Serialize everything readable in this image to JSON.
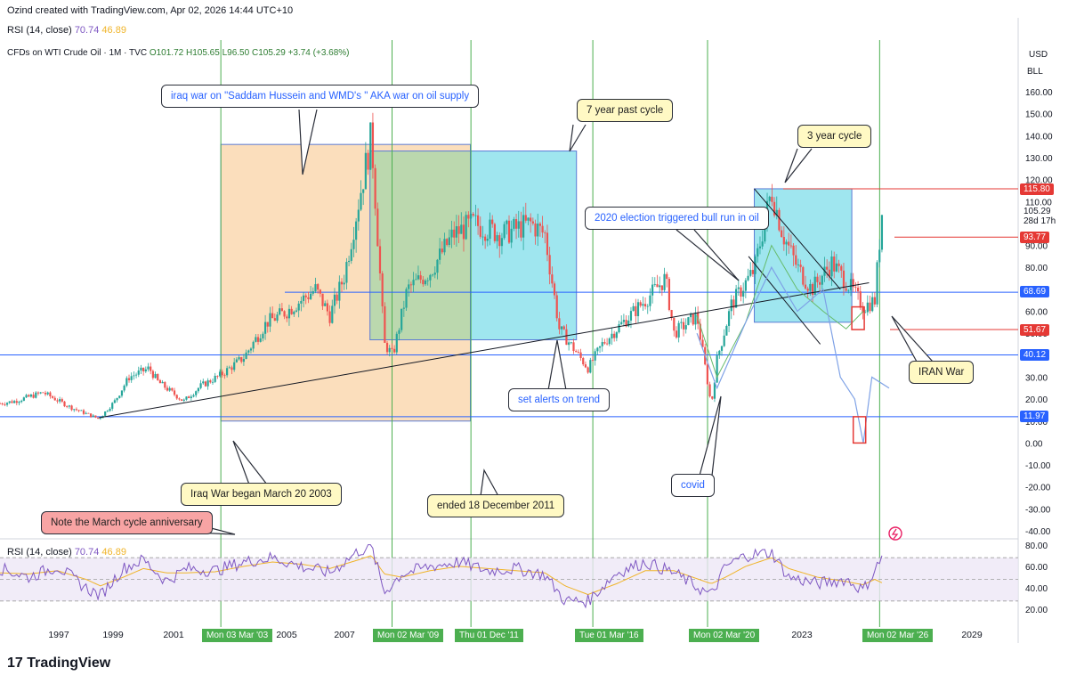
{
  "header": {
    "credit": "Ozind created with TradingView.com, Apr 02, 2026 14:44 UTC+10",
    "rsi_top_label": "RSI (14, close)",
    "rsi_top_v1": "70.74",
    "rsi_top_v2": "46.89",
    "symbol": "CFDs on WTI Crude Oil · 1M · TVC",
    "o": "O101.72",
    "h": "H105.65",
    "l": "L96.50",
    "c": "C105.29",
    "chg": "+3.74 (+3.68%)"
  },
  "axis_header": {
    "currency": "USD",
    "unit": "BLL"
  },
  "colors": {
    "up": "#26a69a",
    "down": "#ef5350",
    "hline": "#5b7bd5",
    "vline": "#4caf50",
    "orange_box": "#f9c890",
    "cyan_box": "#7fdde9",
    "rsi": "#7e57c2",
    "rsi_ma": "#f0b429"
  },
  "callouts": {
    "iraq_war": "iraq war on \"Saddam Hussein and WMD's \" AKA war on oil supply",
    "seven_year": "7 year past cycle",
    "three_year": "3 year cycle",
    "election": "2020 election triggered bull run in oil",
    "alerts": "set alerts on trend",
    "iran": "IRAN War",
    "covid": "covid",
    "iraq_began": "Iraq War began March 20 2003",
    "ended": "ended 18 December 2011",
    "march_note": "Note the March cycle anniversary"
  },
  "price_tags": {
    "p115": "115.80",
    "p105": "105.29",
    "p105_sub": "28d 17h",
    "p93": "93.77",
    "p68": "68.69",
    "p51": "51.67",
    "p40": "40.12",
    "p11": "11.97"
  },
  "date_tags": [
    "Mon 03 Mar '03",
    "Mon 02 Mar '09",
    "Thu 01 Dec '11",
    "Tue 01 Mar '16",
    "Mon 02 Mar '20",
    "Mon 02 Mar '26"
  ],
  "rsi_pane": {
    "label": "RSI (14, close)",
    "v1": "70.74",
    "v2": "46.89",
    "ticks": [
      "80.00",
      "60.00",
      "40.00",
      "20.00"
    ]
  },
  "brand": "TradingView",
  "chart_data": {
    "type": "line",
    "title": "CFDs on WTI Crude Oil · 1M · TVC",
    "ylabel": "USD",
    "ylim": [
      -45,
      170
    ],
    "x_ticks": [
      "1997",
      "1999",
      "2001",
      "2005",
      "2007",
      "2023",
      "2029"
    ],
    "y_ticks": [
      160,
      150,
      140,
      130,
      120,
      110,
      90,
      80,
      70,
      60,
      50,
      30,
      20,
      10,
      0,
      -10,
      -20,
      -30,
      -40
    ],
    "y_tick_labels": [
      "160.00",
      "150.00",
      "140.00",
      "130.00",
      "120.00",
      "110.00",
      "90.00",
      "80.00",
      "70.00",
      "60.00",
      "50.00",
      "30.00",
      "20.00",
      "10.00",
      "0.00",
      "-10.00",
      "-20.00",
      "-30.00",
      "-40.00"
    ],
    "series": [
      {
        "x": [
          1995.5,
          1996,
          1997,
          1998,
          1998.95,
          1999.5,
          2000,
          2000.7,
          2001,
          2001.9,
          2002.5,
          2003.2,
          2004,
          2004.8,
          2005.5,
          2006.5,
          2007,
          2007.5,
          2008.45,
          2008.9,
          2009.2,
          2009.7,
          2010.5,
          2011.3,
          2012,
          2013,
          2014,
          2014.5,
          2015,
          2016,
          2016.5,
          2017,
          2018,
          2018.7,
          2019,
          2019.8,
          2020.3,
          2020.5,
          2021,
          2021.8,
          2022.4,
          2022.8,
          2023.3,
          2023.8,
          2024.5,
          2025.2,
          2025.6,
          2026.0,
          2026.25
        ],
        "values": [
          18,
          19,
          23,
          16,
          11,
          19,
          30,
          34,
          28,
          19,
          26,
          31,
          39,
          55,
          60,
          70,
          58,
          76,
          140,
          45,
          40,
          70,
          78,
          95,
          100,
          95,
          100,
          95,
          52,
          34,
          45,
          52,
          65,
          75,
          50,
          58,
          17,
          38,
          63,
          79,
          115,
          95,
          80,
          70,
          82,
          70,
          62,
          65,
          105.29
        ]
      }
    ],
    "h_levels": [
      115.8,
      93.77,
      68.69,
      51.67,
      40.12,
      11.97
    ],
    "v_markers": [
      "Mon 03 Mar '03",
      "Mon 02 Mar '09",
      "Thu 01 Dec '11",
      "Tue 01 Mar '16",
      "Mon 02 Mar '20",
      "Mon 02 Mar '26"
    ],
    "boxes": [
      {
        "x": [
          2003.2,
          2011.9
        ],
        "y": [
          10,
          136
        ]
      },
      {
        "x": [
          2008.4,
          2011.9
        ],
        "y": [
          47,
          133
        ]
      },
      {
        "x": [
          2011.9,
          2015.6
        ],
        "y": [
          47,
          133
        ]
      },
      {
        "x": [
          2021.8,
          2025.2
        ],
        "y": [
          55,
          115.8
        ]
      }
    ],
    "trendlines": [
      {
        "x": [
          1998.95,
          2025.8
        ],
        "y": [
          11.5,
          73
        ]
      },
      {
        "x": [
          2021.8,
          2024.8
        ],
        "y": [
          115.8,
          70
        ]
      },
      {
        "x": [
          2021.6,
          2024.1
        ],
        "y": [
          85,
          45
        ]
      }
    ],
    "rsi": {
      "ylim": [
        15,
        85
      ],
      "bands": [
        70,
        50,
        30
      ],
      "x": [
        1995.5,
        1996.5,
        1997.5,
        1998.5,
        1999,
        1999.8,
        2000.5,
        2001.3,
        2002,
        2003,
        2004,
        2005,
        2006,
        2007,
        2008,
        2008.45,
        2008.9,
        2009.5,
        2010.5,
        2011.5,
        2012.5,
        2013.5,
        2014.5,
        2015.2,
        2016,
        2017,
        2018,
        2019,
        2020.3,
        2020.8,
        2021.5,
        2022.4,
        2023,
        2024,
        2025,
        2025.6,
        2026,
        2026.25
      ],
      "values": [
        60,
        52,
        62,
        42,
        35,
        60,
        68,
        48,
        60,
        58,
        66,
        70,
        62,
        56,
        76,
        80,
        38,
        55,
        62,
        66,
        58,
        60,
        54,
        30,
        30,
        56,
        66,
        56,
        35,
        62,
        72,
        75,
        52,
        46,
        50,
        40,
        58,
        70.74
      ],
      "ma_values": [
        56,
        55,
        58,
        50,
        44,
        52,
        60,
        56,
        56,
        57,
        62,
        66,
        64,
        60,
        68,
        72,
        55,
        52,
        58,
        62,
        60,
        58,
        56,
        44,
        36,
        46,
        58,
        58,
        46,
        52,
        62,
        70,
        60,
        52,
        48,
        45,
        50,
        46.89
      ]
    }
  }
}
